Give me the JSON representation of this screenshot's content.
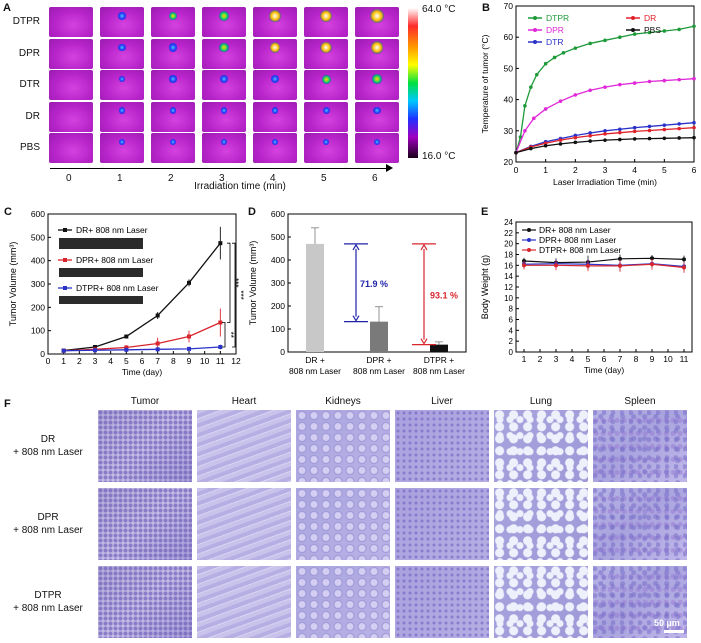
{
  "panel_labels": {
    "a": "A",
    "b": "B",
    "c": "C",
    "d": "D",
    "e": "E",
    "f": "F"
  },
  "thermal": {
    "rows": [
      "DTPR",
      "DPR",
      "DTR",
      "DR",
      "PBS"
    ],
    "times": [
      "0",
      "1",
      "2",
      "3",
      "4",
      "5",
      "6"
    ],
    "xlabel": "Irradiation time (min)",
    "scale_max": "64.0 °C",
    "scale_min": "16.0 °C"
  },
  "chart_data": [
    {
      "id": "B",
      "type": "line",
      "xlabel": "Laser Irradiation Time (min)",
      "ylabel": "Temperature of tumor (°C)",
      "xlim": [
        0,
        6
      ],
      "ylim": [
        20,
        70
      ],
      "xticks": [
        "0",
        "1",
        "2",
        "3",
        "4",
        "5",
        "6"
      ],
      "yticks": [
        "20",
        "30",
        "40",
        "50",
        "60",
        "70"
      ],
      "series": [
        {
          "name": "DTPR",
          "color": "#1e9a3a",
          "x": [
            0,
            0.15,
            0.3,
            0.5,
            0.7,
            1,
            1.3,
            1.6,
            2,
            2.5,
            3,
            3.5,
            4,
            4.5,
            5,
            5.5,
            6
          ],
          "y": [
            23,
            28,
            38,
            44,
            48,
            51.5,
            53.5,
            55,
            56.5,
            58,
            59,
            60,
            61,
            61.5,
            62,
            62.5,
            63.5
          ]
        },
        {
          "name": "DPR",
          "color": "#e028d8",
          "x": [
            0,
            0.3,
            0.6,
            1,
            1.5,
            2,
            2.5,
            3,
            3.5,
            4,
            4.5,
            5,
            5.5,
            6
          ],
          "y": [
            23,
            30,
            34,
            37,
            39.5,
            41.5,
            43,
            44,
            44.8,
            45.3,
            45.8,
            46.1,
            46.4,
            46.7
          ]
        },
        {
          "name": "DTR",
          "color": "#2a32c8",
          "x": [
            0,
            0.5,
            1,
            1.5,
            2,
            2.5,
            3,
            3.5,
            4,
            4.5,
            5,
            5.5,
            6
          ],
          "y": [
            23,
            25,
            26.5,
            27.5,
            28.5,
            29.3,
            30,
            30.5,
            31,
            31.4,
            31.8,
            32.2,
            32.6
          ]
        },
        {
          "name": "DR",
          "color": "#e0222a",
          "x": [
            0,
            0.5,
            1,
            1.5,
            2,
            2.5,
            3,
            3.5,
            4,
            4.5,
            5,
            5.5,
            6
          ],
          "y": [
            23,
            24.8,
            26,
            27,
            27.8,
            28.4,
            29,
            29.4,
            29.8,
            30.1,
            30.4,
            30.7,
            31
          ]
        },
        {
          "name": "PBS",
          "color": "#111111",
          "x": [
            0,
            0.5,
            1,
            1.5,
            2,
            2.5,
            3,
            3.5,
            4,
            4.5,
            5,
            5.5,
            6
          ],
          "y": [
            23,
            24.3,
            25.2,
            25.8,
            26.3,
            26.7,
            27,
            27.2,
            27.4,
            27.5,
            27.6,
            27.7,
            27.8
          ]
        }
      ]
    },
    {
      "id": "C",
      "type": "line",
      "xlabel": "Time (day)",
      "ylabel": "Tumor Volume (mm³)",
      "xlim": [
        0,
        12
      ],
      "ylim": [
        0,
        600
      ],
      "xticks": [
        "0",
        "1",
        "2",
        "3",
        "4",
        "5",
        "6",
        "7",
        "8",
        "9",
        "10",
        "11",
        "12"
      ],
      "yticks": [
        "0",
        "100",
        "200",
        "300",
        "400",
        "500",
        "600"
      ],
      "series": [
        {
          "name": "DR+ 808 nm Laser",
          "color": "#111111",
          "x": [
            1,
            3,
            5,
            7,
            9,
            11
          ],
          "y": [
            15,
            30,
            75,
            165,
            305,
            475
          ],
          "err": [
            3,
            5,
            8,
            15,
            15,
            70
          ]
        },
        {
          "name": "DPR+ 808 nm Laser",
          "color": "#d8262e",
          "x": [
            1,
            3,
            5,
            7,
            9,
            11
          ],
          "y": [
            14,
            20,
            28,
            45,
            75,
            135
          ],
          "err": [
            3,
            5,
            10,
            25,
            25,
            60
          ]
        },
        {
          "name": "DTPR+ 808 nm Laser",
          "color": "#2a32c8",
          "x": [
            1,
            3,
            5,
            7,
            9,
            11
          ],
          "y": [
            14,
            16,
            18,
            20,
            22,
            30
          ],
          "err": [
            3,
            3,
            4,
            4,
            5,
            10
          ]
        }
      ],
      "annotations": [
        "***",
        "***",
        "**"
      ]
    },
    {
      "id": "D",
      "type": "bar",
      "ylabel": "Tumor Volume (mm³)",
      "ylim": [
        0,
        600
      ],
      "yticks": [
        "0",
        "100",
        "200",
        "300",
        "400",
        "500",
        "600"
      ],
      "categories": [
        "DR + 808 nm Laser",
        "DPR + 808 nm Laser",
        "DTPR + 808 nm Laser"
      ],
      "values": [
        470,
        132,
        32
      ],
      "errors": [
        70,
        65,
        12
      ],
      "colors": [
        "#c8c8c8",
        "#7a7a7a",
        "#111111"
      ],
      "annotations": [
        {
          "text": "71.9 %",
          "color": "#1e23a8"
        },
        {
          "text": "93.1 %",
          "color": "#d8262e"
        }
      ]
    },
    {
      "id": "E",
      "type": "line",
      "xlabel": "Time (day)",
      "ylabel": "Body Weight (g)",
      "xlim": [
        0.5,
        11.5
      ],
      "ylim": [
        0,
        24
      ],
      "xticks": [
        "1",
        "2",
        "3",
        "4",
        "5",
        "6",
        "7",
        "8",
        "9",
        "10",
        "11"
      ],
      "yticks": [
        "0",
        "2",
        "4",
        "6",
        "8",
        "10",
        "12",
        "14",
        "16",
        "18",
        "20",
        "22",
        "24"
      ],
      "series": [
        {
          "name": "DR+ 808 nm Laser",
          "color": "#111111",
          "x": [
            1,
            3,
            5,
            7,
            9,
            11
          ],
          "y": [
            16.8,
            16.5,
            16.6,
            17.2,
            17.3,
            17.1
          ],
          "err": [
            0.6,
            0.8,
            1.2,
            0.8,
            0.6,
            0.7
          ]
        },
        {
          "name": "DPR+ 808 nm Laser",
          "color": "#2a32c8",
          "x": [
            1,
            3,
            5,
            7,
            9,
            11
          ],
          "y": [
            16.2,
            16.3,
            16.2,
            16.0,
            16.3,
            15.8
          ],
          "err": [
            0.7,
            0.8,
            0.9,
            1.0,
            0.8,
            0.9
          ]
        },
        {
          "name": "DTPR+ 808 nm Laser",
          "color": "#d8262e",
          "x": [
            1,
            3,
            5,
            7,
            9,
            11
          ],
          "y": [
            16.0,
            16.0,
            15.9,
            15.9,
            16.2,
            15.6
          ],
          "err": [
            0.8,
            0.9,
            1.0,
            1.1,
            1.0,
            1.0
          ]
        }
      ]
    }
  ],
  "histology": {
    "columns": [
      "Tumor",
      "Heart",
      "Kidneys",
      "Liver",
      "Lung",
      "Spleen"
    ],
    "rows": [
      {
        "line1": "DR",
        "line2": "+ 808 nm Laser"
      },
      {
        "line1": "DPR",
        "line2": "+ 808 nm Laser"
      },
      {
        "line1": "DTPR",
        "line2": "+ 808 nm Laser"
      }
    ],
    "scale_bar": "50 µm"
  }
}
